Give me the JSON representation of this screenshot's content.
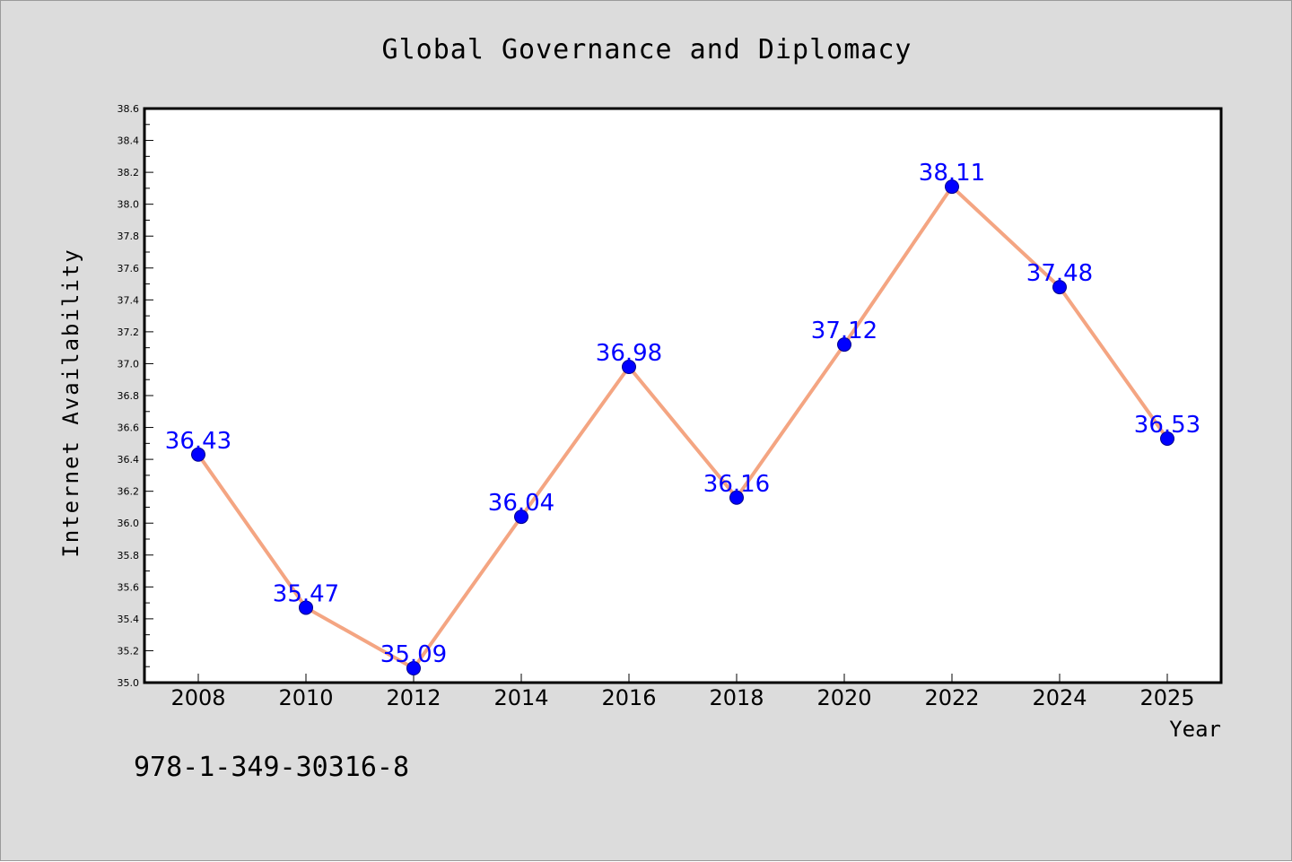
{
  "chart_data": {
    "type": "line",
    "title": "Global Governance and Diplomacy",
    "xlabel": "Year",
    "ylabel": "Internet Availability",
    "categories": [
      "2008",
      "2010",
      "2012",
      "2014",
      "2016",
      "2018",
      "2020",
      "2022",
      "2024",
      "2025"
    ],
    "series": [
      {
        "values": [
          36.43,
          35.47,
          35.09,
          36.04,
          36.98,
          36.16,
          37.12,
          38.11,
          37.48,
          36.53
        ],
        "data_labels": [
          "36.43",
          "35.47",
          "35.09",
          "36.04",
          "36.98",
          "36.16",
          "37.12",
          "38.11",
          "37.48",
          "36.53"
        ],
        "line_color": "#f4a582",
        "marker_color": "#0000ff",
        "label_color": "#0000ff"
      }
    ],
    "ylim": [
      35.0,
      38.6
    ],
    "yticks": [
      "35.0",
      "35.2",
      "35.4",
      "35.6",
      "35.8",
      "36.0",
      "36.2",
      "36.4",
      "36.6",
      "36.8",
      "37.0",
      "37.2",
      "37.4",
      "37.6",
      "37.8",
      "38.0",
      "38.2",
      "38.4",
      "38.6"
    ],
    "grid": false,
    "legend": "none"
  },
  "footer_text": "978-1-349-30316-8",
  "colors": {
    "figure_background": "#dcdcdc",
    "plot_background": "#ffffff",
    "axis": "#000000",
    "text": "#000000"
  }
}
